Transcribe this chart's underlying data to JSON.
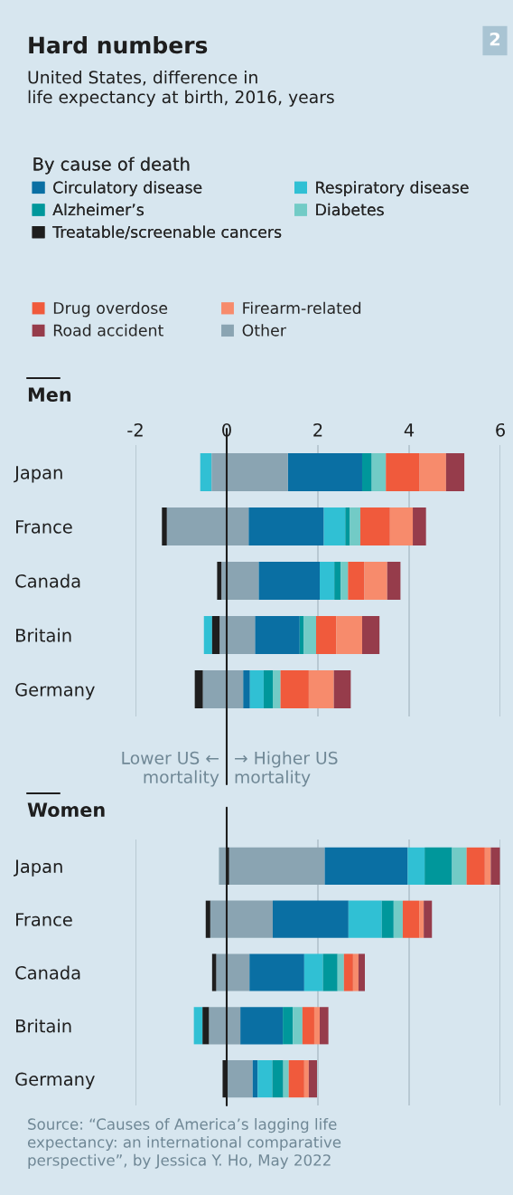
{
  "chart_data": [
    {
      "type": "bar",
      "orientation": "horizontal",
      "title": "Hard numbers",
      "subtitle": "United States, difference in\nlife expectancy at birth, 2016, years",
      "legend_title": "By cause of death",
      "legend": "top",
      "grid": "x",
      "xlim": [
        -2,
        6
      ],
      "xticks": [
        -2,
        0,
        2,
        4,
        6
      ],
      "tick_labels": "xy",
      "annotations": [
        "2",
        "Men",
        "Lower US ←\nmortality",
        "→ Higher US\nmortality"
      ],
      "ref_lines": [
        {
          "axis": "x",
          "value": 0,
          "color": "#1e1e1e"
        }
      ],
      "categories": [
        "Japan",
        "France",
        "Canada",
        "Britain",
        "Germany"
      ],
      "series": [
        {
          "name": "Circulatory disease",
          "color": "#0a6fa3",
          "base": [
            1.34,
            0.48,
            0.7,
            0.62,
            0.36
          ],
          "values": [
            1.63,
            1.65,
            1.34,
            0.98,
            0.15
          ]
        },
        {
          "name": "Respiratory disease",
          "color": "#30c0d4",
          "base": [
            -0.58,
            2.13,
            2.04,
            -0.5,
            0.51
          ],
          "values": [
            0.25,
            0.47,
            0.32,
            0.18,
            0.3
          ]
        },
        {
          "name": "Alzheimer’s",
          "color": "#00979b",
          "base": [
            2.97,
            2.6,
            2.36,
            1.6,
            0.81
          ],
          "values": [
            0.21,
            0.1,
            0.14,
            0.09,
            0.2
          ]
        },
        {
          "name": "Diabetes",
          "color": "#72cbc6",
          "base": [
            3.18,
            2.7,
            2.5,
            1.69,
            1.01
          ],
          "values": [
            0.31,
            0.23,
            0.16,
            0.27,
            0.17
          ]
        },
        {
          "name": "Treatable/screenable cancers",
          "color": "#1e1e1e",
          "base": [
            null,
            -1.42,
            -0.21,
            -0.32,
            -0.7
          ],
          "values": [
            null,
            0.11,
            0.1,
            0.17,
            0.18
          ]
        },
        {
          "name": "Drug overdose",
          "color": "#f05a3c",
          "base": [
            3.49,
            2.93,
            2.66,
            1.96,
            1.18
          ],
          "values": [
            0.74,
            0.65,
            0.36,
            0.44,
            0.62
          ]
        },
        {
          "name": "Firearm-related",
          "color": "#f78b6c",
          "base": [
            4.23,
            3.58,
            3.02,
            2.4,
            1.8
          ],
          "values": [
            0.58,
            0.5,
            0.5,
            0.57,
            0.55
          ]
        },
        {
          "name": "Road accident",
          "color": "#963c4b",
          "base": [
            4.81,
            4.08,
            3.52,
            2.97,
            2.35
          ],
          "values": [
            0.4,
            0.29,
            0.29,
            0.38,
            0.37
          ]
        },
        {
          "name": "Other",
          "color": "#8aa4b2",
          "base": [
            -0.33,
            -1.31,
            -0.11,
            -0.15,
            -0.52
          ],
          "values": [
            1.67,
            1.79,
            0.81,
            0.77,
            0.88
          ]
        }
      ]
    },
    {
      "type": "bar",
      "orientation": "horizontal",
      "title": "Women",
      "grid": "x",
      "xlim": [
        -2,
        6
      ],
      "xticks": [
        -2,
        0,
        2,
        4,
        6
      ],
      "tick_labels": "y",
      "annotations": [
        "Source: “Causes of America’s lagging life\nexpectancy: an international comparative\nperspective”, by Jessica Y. Ho, May 2022"
      ],
      "ref_lines": [
        {
          "axis": "x",
          "value": 0,
          "color": "#1e1e1e"
        }
      ],
      "categories": [
        "Japan",
        "France",
        "Canada",
        "Britain",
        "Germany"
      ],
      "series": [
        {
          "color": "#8aa4b2",
          "base": [
            -0.17,
            -0.36,
            -0.23,
            -0.39,
            0
          ],
          "values": [
            2.32,
            1.37,
            0.73,
            0.69,
            0.57
          ]
        },
        {
          "color": "#0a6fa3",
          "base": [
            2.15,
            1.01,
            0.5,
            0.3,
            0.57
          ],
          "values": [
            1.82,
            1.66,
            1.2,
            0.93,
            0.11
          ]
        },
        {
          "color": "#30c0d4",
          "base": [
            3.97,
            2.67,
            1.7,
            -0.72,
            0.68
          ],
          "values": [
            0.37,
            0.73,
            0.41,
            0.19,
            0.32
          ]
        },
        {
          "color": "#00979b",
          "base": [
            4.34,
            3.4,
            2.11,
            1.23,
            1.0
          ],
          "values": [
            0.6,
            0.26,
            0.32,
            0.22,
            0.24
          ]
        },
        {
          "color": "#72cbc6",
          "base": [
            4.94,
            3.66,
            2.43,
            1.45,
            1.24
          ],
          "values": [
            0.32,
            0.2,
            0.14,
            0.21,
            0.12
          ]
        },
        {
          "color": "#1e1e1e",
          "base": [
            0,
            -0.46,
            -0.32,
            -0.53,
            -0.09
          ],
          "values": [
            0.05,
            0.1,
            0.09,
            0.14,
            0.09
          ]
        },
        {
          "color": "#f05a3c",
          "base": [
            5.26,
            3.86,
            2.57,
            1.66,
            1.36
          ],
          "values": [
            0.4,
            0.36,
            0.2,
            0.26,
            0.34
          ]
        },
        {
          "color": "#f78b6c",
          "base": [
            5.66,
            4.22,
            2.77,
            1.92,
            1.7
          ],
          "values": [
            0.13,
            0.1,
            0.12,
            0.12,
            0.1
          ]
        },
        {
          "color": "#963c4b",
          "base": [
            5.79,
            4.32,
            2.89,
            2.04,
            1.8
          ],
          "values": [
            0.2,
            0.18,
            0.14,
            0.19,
            0.18
          ]
        }
      ]
    }
  ]
}
